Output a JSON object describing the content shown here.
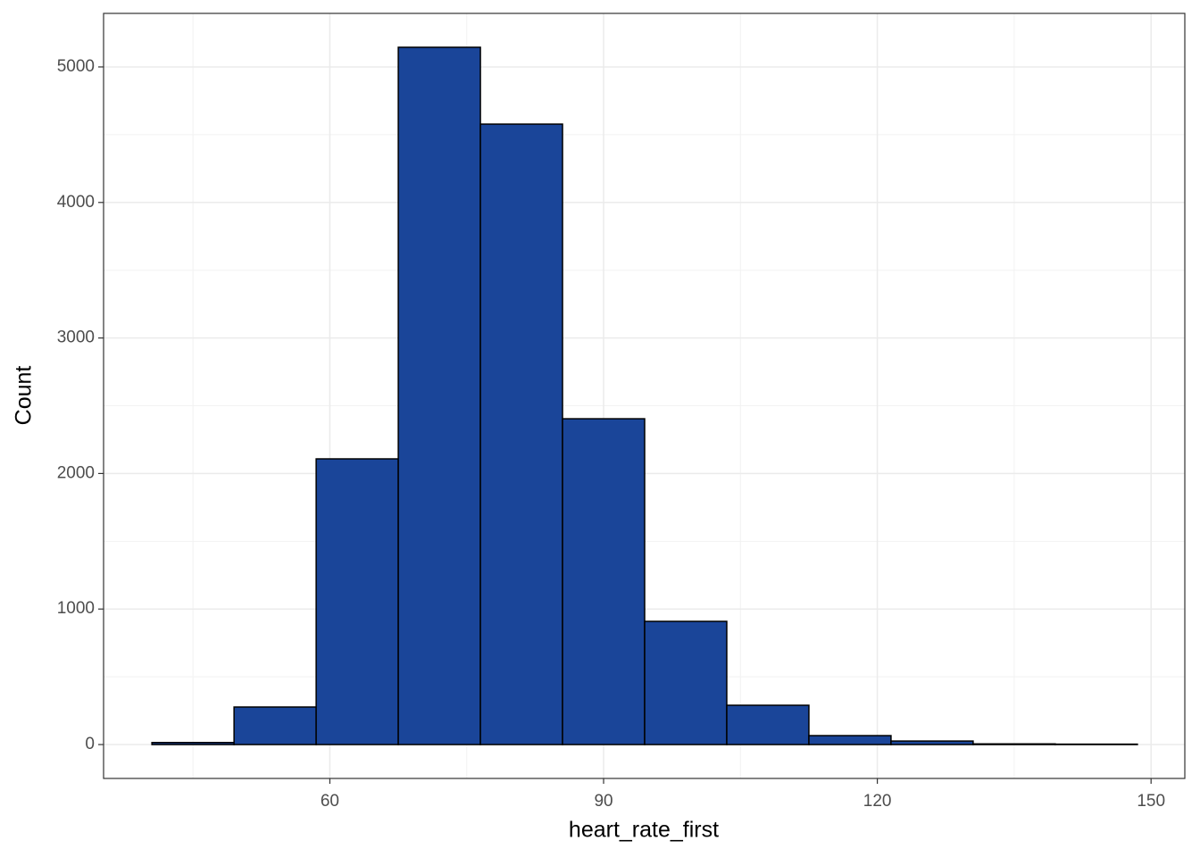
{
  "chart_data": {
    "type": "histogram",
    "x_label": "heart_rate_first",
    "y_label": "Count",
    "bins": [
      40.5,
      49.5,
      58.5,
      67.5,
      76.5,
      85.5,
      94.5,
      103.5,
      112.5,
      121.5,
      130.5,
      139.5,
      148.5
    ],
    "values": [
      15,
      277,
      2108,
      5145,
      4578,
      2404,
      909,
      290,
      66,
      26,
      5,
      3
    ],
    "color": "#1a4599",
    "edgecolor": "#000000",
    "xlim": [
      35.2,
      153.7
    ],
    "ylim": [
      -250,
      5395
    ],
    "xticks": [
      60,
      90,
      120,
      150
    ],
    "yticks": [
      0,
      1000,
      2000,
      3000,
      4000,
      5000
    ],
    "minor_xticks": [
      45,
      75,
      105,
      135
    ],
    "minor_yticks": [
      500,
      1500,
      2500,
      3500,
      4500
    ],
    "grid": true
  }
}
